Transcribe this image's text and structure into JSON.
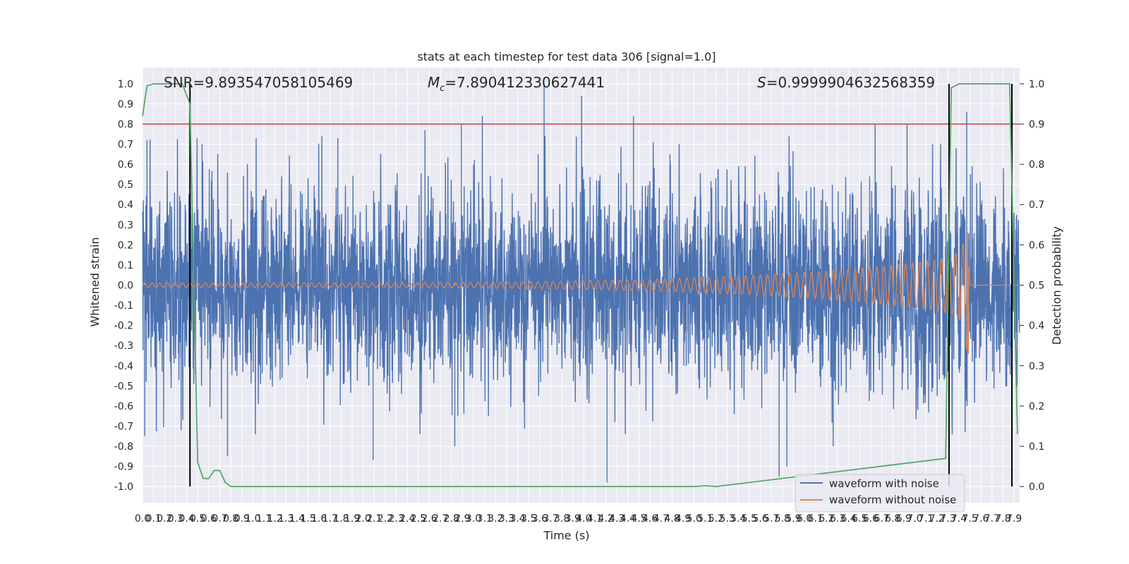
{
  "chart_data": {
    "type": "line",
    "title": "stats at each timestep for test data 306 [signal=1.0]",
    "xlabel": "Time (s)",
    "ylabel_left": "Whitened strain",
    "ylabel_right": "Detection probability",
    "xlim": [
      0.0,
      7.95
    ],
    "ylim_left": [
      -1.08,
      1.08
    ],
    "ylim_right": [
      -0.04,
      1.04
    ],
    "grid": true,
    "legend_position": "lower-right",
    "annotations": {
      "snr": "SNR=9.893547058105469",
      "mc_symbol": "M",
      "mc_sub": "c",
      "mc_value": "=7.890412330627441",
      "s_symbol": "S",
      "s_value": "=0.9999904632568359"
    },
    "x_ticks": [
      0.0,
      0.1,
      0.2,
      0.3,
      0.4,
      0.5,
      0.6,
      0.7,
      0.8,
      0.9,
      1.0,
      1.1,
      1.2,
      1.3,
      1.4,
      1.5,
      1.6,
      1.7,
      1.8,
      1.9,
      2.0,
      2.1,
      2.2,
      2.3,
      2.4,
      2.5,
      2.6,
      2.7,
      2.8,
      2.9,
      3.0,
      3.1,
      3.2,
      3.3,
      3.4,
      3.5,
      3.6,
      3.7,
      3.8,
      3.9,
      4.0,
      4.1,
      4.2,
      4.3,
      4.4,
      4.5,
      4.6,
      4.7,
      4.8,
      4.9,
      5.0,
      5.1,
      5.2,
      5.3,
      5.4,
      5.5,
      5.6,
      5.7,
      5.8,
      5.9,
      6.0,
      6.1,
      6.2,
      6.3,
      6.4,
      6.5,
      6.6,
      6.7,
      6.8,
      6.9,
      7.0,
      7.1,
      7.2,
      7.3,
      7.4,
      7.5,
      7.6,
      7.7,
      7.8,
      7.9
    ],
    "y_ticks_left": [
      -1.0,
      -0.9,
      -0.8,
      -0.7,
      -0.6,
      -0.5,
      -0.4,
      -0.3,
      -0.2,
      -0.1,
      0.0,
      0.1,
      0.2,
      0.3,
      0.4,
      0.5,
      0.6,
      0.7,
      0.8,
      0.9,
      1.0
    ],
    "y_ticks_right": [
      0.0,
      0.1,
      0.2,
      0.3,
      0.4,
      0.5,
      0.6,
      0.7,
      0.8,
      0.9,
      1.0
    ],
    "threshold": {
      "value": 0.9,
      "axis": "right",
      "color": "#c44e52"
    },
    "vertical_lines": [
      0.43,
      7.31,
      7.88
    ],
    "series": [
      {
        "name": "waveform with noise",
        "color": "#4c72b0",
        "axis": "left",
        "envelope": {
          "x_range": [
            0.0,
            7.95
          ],
          "typical_amplitude": 0.45,
          "max_observed": 1.0,
          "min_observed": -0.98
        },
        "peaks": [
          {
            "x": 0.04,
            "y": 0.72
          },
          {
            "x": 0.54,
            "y": 0.7
          },
          {
            "x": 1.77,
            "y": 0.73
          },
          {
            "x": 2.56,
            "y": 0.77
          },
          {
            "x": 2.89,
            "y": 0.8
          },
          {
            "x": 3.08,
            "y": 0.84
          },
          {
            "x": 3.64,
            "y": 1.0
          },
          {
            "x": 3.98,
            "y": 0.94
          },
          {
            "x": 4.45,
            "y": 0.84
          },
          {
            "x": 6.64,
            "y": 0.8
          },
          {
            "x": 6.93,
            "y": 0.8
          },
          {
            "x": 7.47,
            "y": 0.86
          },
          {
            "x": 0.02,
            "y": -0.75
          },
          {
            "x": 0.35,
            "y": -0.72
          },
          {
            "x": 0.77,
            "y": -0.85
          },
          {
            "x": 2.09,
            "y": -0.87
          },
          {
            "x": 2.83,
            "y": -0.8
          },
          {
            "x": 4.21,
            "y": -0.98
          },
          {
            "x": 5.77,
            "y": -0.95
          },
          {
            "x": 5.84,
            "y": -0.9
          },
          {
            "x": 6.26,
            "y": -0.8
          }
        ]
      },
      {
        "name": "waveform without noise",
        "color": "#dd8452",
        "axis": "left",
        "chirp": {
          "start_amplitude": 0.01,
          "peak_time": 7.48,
          "peak_value": 0.26,
          "trough_value": -0.34,
          "amp_at_7_3": 0.12
        }
      },
      {
        "name": "Detection probability",
        "color": "#55a868",
        "axis": "right",
        "x": [
          0.0,
          0.04,
          0.1,
          0.2,
          0.3,
          0.36,
          0.43,
          0.5,
          0.55,
          0.6,
          0.65,
          0.7,
          0.75,
          0.8,
          0.85,
          5.0,
          5.1,
          5.2,
          7.28,
          7.33,
          7.4,
          7.5,
          7.6,
          7.7,
          7.8,
          7.86,
          7.9,
          7.93
        ],
        "y": [
          0.92,
          0.995,
          1.0,
          1.0,
          1.0,
          1.0,
          0.95,
          0.06,
          0.02,
          0.02,
          0.04,
          0.04,
          0.01,
          0.0,
          0.0,
          0.0,
          0.002,
          0.0,
          0.07,
          0.99,
          1.0,
          1.0,
          1.0,
          1.0,
          1.0,
          1.0,
          0.5,
          0.13
        ]
      }
    ]
  }
}
